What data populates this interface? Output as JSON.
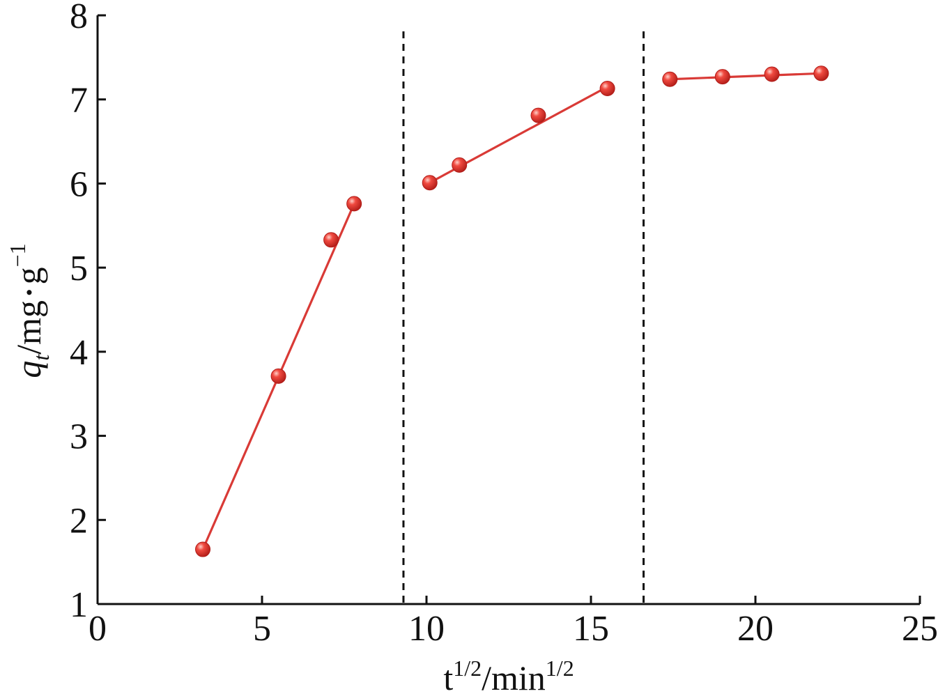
{
  "chart_data": {
    "type": "scatter",
    "title": "",
    "xlabel": {
      "base": "t",
      "sup1": "1/2",
      "mid": "/min",
      "sup2": "1/2"
    },
    "ylabel": {
      "q": "q",
      "sub": "t",
      "unit": "/mg",
      "dot": "•",
      "g": "g",
      "sup": "−1"
    },
    "xlim": [
      0,
      25
    ],
    "ylim": [
      1,
      8
    ],
    "xticks": [
      0,
      5,
      10,
      15,
      20,
      25
    ],
    "yticks": [
      1,
      2,
      3,
      4,
      5,
      6,
      7,
      8
    ],
    "separators_x": [
      9.3,
      16.6
    ],
    "grid": false,
    "legend": "none",
    "colors": {
      "series": "#d93a36"
    },
    "segments": [
      {
        "x": [
          3.2,
          5.5,
          7.1,
          7.8
        ],
        "y": [
          1.65,
          3.71,
          5.33,
          5.76
        ],
        "fit": [
          [
            3.2,
            1.65
          ],
          [
            7.8,
            5.76
          ]
        ]
      },
      {
        "x": [
          10.1,
          11.0,
          13.4,
          15.5
        ],
        "y": [
          6.01,
          6.22,
          6.81,
          7.13
        ],
        "fit": [
          [
            10.1,
            6.01
          ],
          [
            15.5,
            7.15
          ]
        ]
      },
      {
        "x": [
          17.4,
          19.0,
          20.5,
          22.0
        ],
        "y": [
          7.24,
          7.27,
          7.3,
          7.31
        ],
        "fit": [
          [
            17.4,
            7.24
          ],
          [
            22.0,
            7.31
          ]
        ]
      }
    ]
  }
}
